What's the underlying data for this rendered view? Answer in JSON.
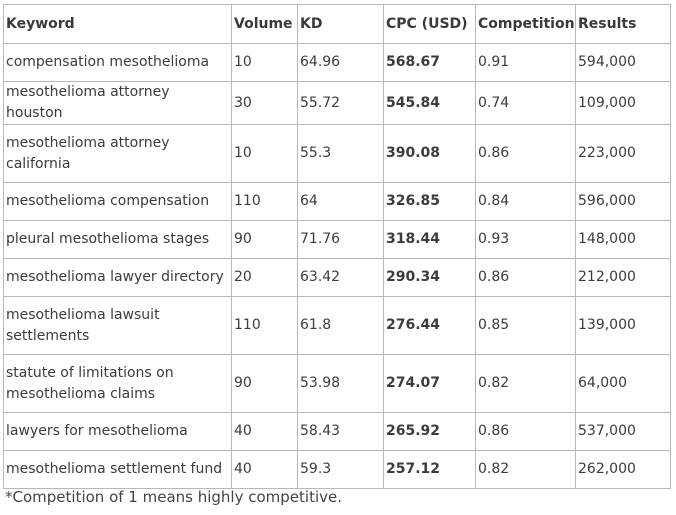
{
  "table": {
    "headers": [
      "Keyword",
      "Volume",
      "KD",
      "CPC (USD)",
      "Competition",
      "Results"
    ],
    "rows": [
      [
        "compensation mesothelioma",
        "10",
        "64.96",
        "568.67",
        "0.91",
        "594,000"
      ],
      [
        "mesothelioma attorney houston",
        "30",
        "55.72",
        "545.84",
        "0.74",
        "109,000"
      ],
      [
        "mesothelioma attorney california",
        "10",
        "55.3",
        "390.08",
        "0.86",
        "223,000"
      ],
      [
        "mesothelioma compensation",
        "110",
        "64",
        "326.85",
        "0.84",
        "596,000"
      ],
      [
        "pleural mesothelioma stages",
        "90",
        "71.76",
        "318.44",
        "0.93",
        "148,000"
      ],
      [
        "mesothelioma lawyer directory",
        "20",
        "63.42",
        "290.34",
        "0.86",
        "212,000"
      ],
      [
        "mesothelioma lawsuit settlements",
        "110",
        "61.8",
        "276.44",
        "0.85",
        "139,000"
      ],
      [
        "statute of limitations on mesothelioma claims",
        "90",
        "53.98",
        "274.07",
        "0.82",
        "64,000"
      ],
      [
        "lawyers for mesothelioma",
        "40",
        "58.43",
        "265.92",
        "0.86",
        "537,000"
      ],
      [
        "mesothelioma settlement fund",
        "40",
        "59.3",
        "257.12",
        "0.82",
        "262,000"
      ]
    ]
  },
  "footnote": "*Competition of 1 means highly competitive."
}
